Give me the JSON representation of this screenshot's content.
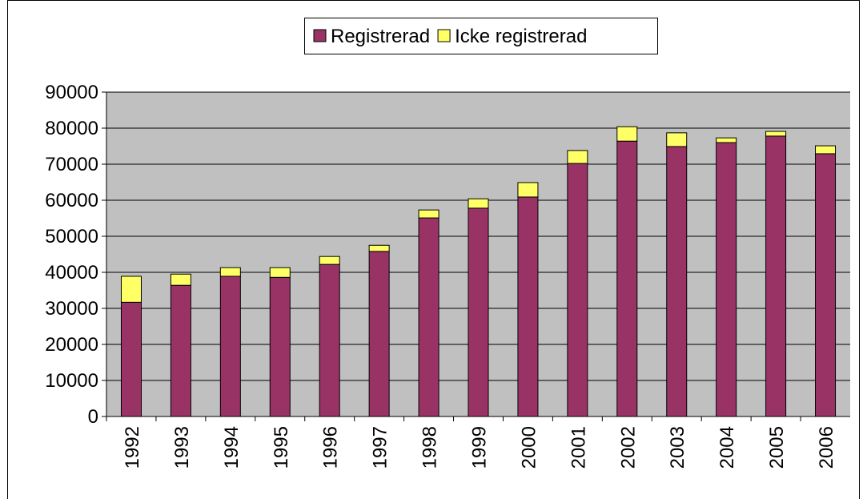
{
  "chart_data": {
    "type": "stacked_bar",
    "categories": [
      "1992",
      "1993",
      "1994",
      "1995",
      "1996",
      "1997",
      "1998",
      "1999",
      "2000",
      "2001",
      "2002",
      "2003",
      "2004",
      "2005",
      "2006"
    ],
    "series": [
      {
        "name": "Registrerad",
        "color": "#993366",
        "values": [
          31700,
          36400,
          38900,
          38600,
          42200,
          45800,
          55100,
          57800,
          60900,
          70200,
          76400,
          74900,
          76000,
          77800,
          72900
        ]
      },
      {
        "name": "Icke registrerad",
        "color": "#ffff66",
        "values": [
          7200,
          3100,
          2400,
          2700,
          2200,
          1700,
          2200,
          2600,
          4000,
          3600,
          4000,
          3800,
          1300,
          1300,
          2200
        ]
      }
    ],
    "ylim": [
      0,
      90000
    ],
    "yticks": [
      0,
      10000,
      20000,
      30000,
      40000,
      50000,
      60000,
      70000,
      80000,
      90000
    ],
    "grid": true,
    "legend": "top"
  }
}
